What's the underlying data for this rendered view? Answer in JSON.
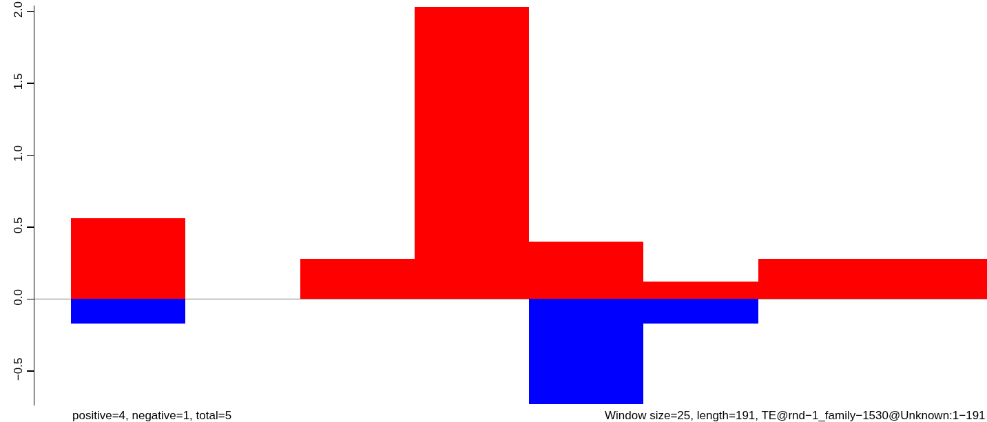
{
  "chart_data": {
    "type": "bar",
    "stacked": true,
    "categories": [
      null,
      null,
      null,
      null,
      null,
      null,
      null,
      null
    ],
    "series": [
      {
        "color": "#ff0000",
        "values": [
          0.56,
          null,
          0.28,
          2.03,
          0.4,
          0.12,
          0.28,
          0.28
        ]
      },
      {
        "color": "#0000ff",
        "values": [
          -0.17,
          null,
          null,
          null,
          -0.73,
          -0.17,
          null,
          null
        ]
      }
    ],
    "ylim": [
      -0.74,
      2.04
    ],
    "yticks": [
      {
        "value": -0.5,
        "label": "−0.5"
      },
      {
        "value": 0,
        "label": "0.0"
      },
      {
        "value": 0.5,
        "label": "0.5"
      },
      {
        "value": 1,
        "label": "1.0"
      },
      {
        "value": 1.5,
        "label": "1.5"
      },
      {
        "value": 2,
        "label": "2.0"
      }
    ],
    "tick_labels": "y",
    "grid": false,
    "ref_lines": [
      {
        "axis": "y",
        "value": 0,
        "color": "#808080"
      }
    ],
    "annotations": [
      "positive=4, negative=1, total=5",
      "Window size=25, length=191, TE@rnd−1_family−1530@Unknown:1−191"
    ]
  }
}
